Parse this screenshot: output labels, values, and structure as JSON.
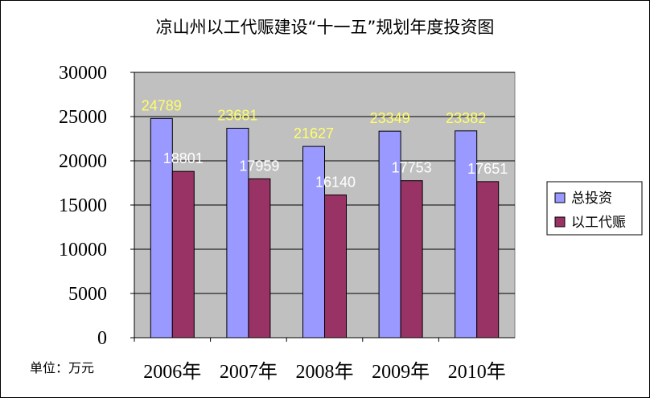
{
  "chart_data": {
    "type": "bar",
    "title": "凉山州以工代赈建设“十一五”规划年度投资图",
    "categories": [
      "2006年",
      "2007年",
      "2008年",
      "2009年",
      "2010年"
    ],
    "series": [
      {
        "name": "总投资",
        "values": [
          24789,
          23681,
          21627,
          23349,
          23382
        ],
        "color": "#9999ff",
        "label_color": "#ffff66"
      },
      {
        "name": "以工代赈",
        "values": [
          18801,
          17959,
          16140,
          17753,
          17651
        ],
        "color": "#993366",
        "label_color": "#ffffff"
      }
    ],
    "y_ticks": [
      "0",
      "5000",
      "10000",
      "15000",
      "20000",
      "25000",
      "30000"
    ],
    "ylim": [
      0,
      30000
    ],
    "y_step": 5000,
    "unit_note": "单位：万元",
    "grid": true,
    "legend": "right",
    "plot_background": "#c0c0c0",
    "data_labels": [
      "24789",
      "23681",
      "21627",
      "23349",
      "23382",
      "18801",
      "17959",
      "16140",
      "17753",
      "17651"
    ]
  }
}
